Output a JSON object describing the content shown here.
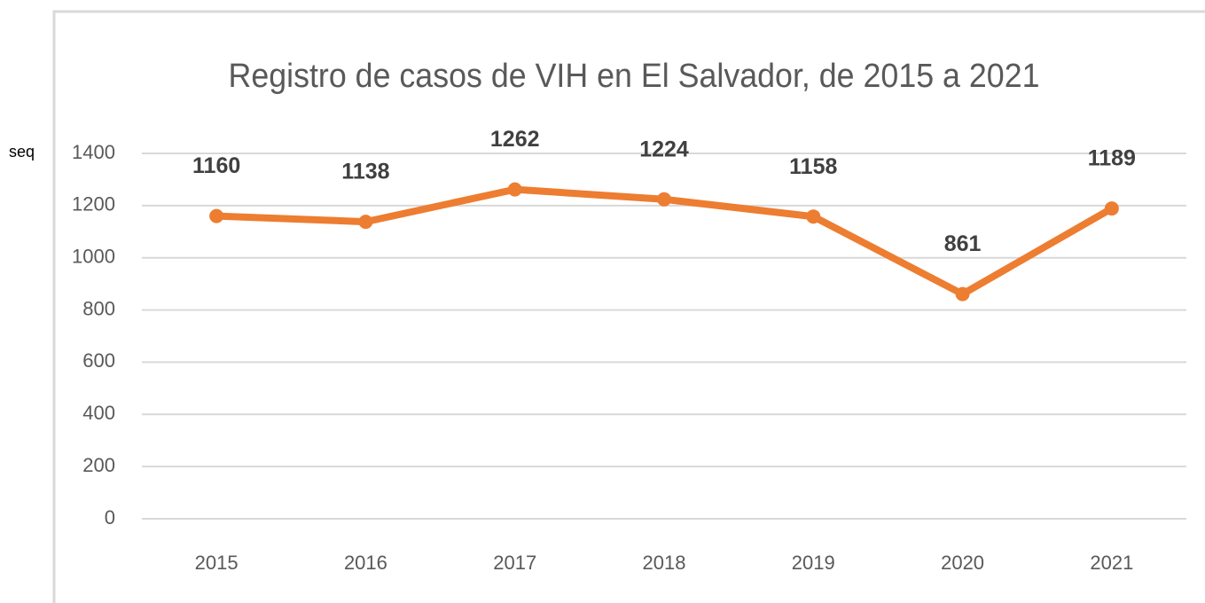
{
  "chart_data": {
    "type": "line",
    "title": "Registro de casos de VIH en El Salvador, de 2015 a 2021",
    "annotation": "seq",
    "categories": [
      "2015",
      "2016",
      "2017",
      "2018",
      "2019",
      "2020",
      "2021"
    ],
    "values": [
      1160,
      1138,
      1262,
      1224,
      1158,
      861,
      1189
    ],
    "color": "#ed7d31",
    "ylim": [
      0,
      1400
    ],
    "yticks": [
      0,
      200,
      400,
      600,
      800,
      1000,
      1200,
      1400
    ],
    "grid": true
  }
}
